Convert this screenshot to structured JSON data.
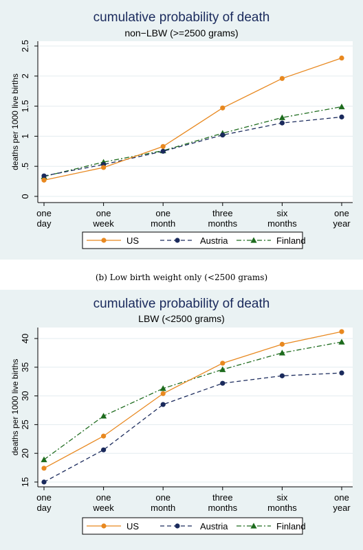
{
  "caption": "(b) Low birth weight only (<2500 grams)",
  "chart_data": [
    {
      "type": "line",
      "title": "cumulative probability of death",
      "subtitle": "non−LBW (>=2500 grams)",
      "ylabel": "deaths per 1000 live births",
      "ylim": [
        0,
        2.5
      ],
      "yticks": [
        0,
        0.5,
        1,
        1.5,
        2,
        2.5
      ],
      "ytick_labels": [
        "0",
        ".5",
        "1",
        "1.5",
        "2",
        "2.5"
      ],
      "categories": [
        [
          "one",
          "day"
        ],
        [
          "one",
          "week"
        ],
        [
          "one",
          "month"
        ],
        [
          "three",
          "months"
        ],
        [
          "six",
          "months"
        ],
        [
          "one",
          "year"
        ]
      ],
      "grid": true,
      "legend_position": "bottom",
      "series": [
        {
          "name": "US",
          "color": "#e8881f",
          "marker": "circle",
          "dash": "none",
          "values": [
            0.27,
            0.48,
            0.83,
            1.47,
            1.96,
            2.3
          ]
        },
        {
          "name": "Austria",
          "color": "#1a2a5c",
          "marker": "circle",
          "dash": "long",
          "values": [
            0.34,
            0.53,
            0.75,
            1.02,
            1.22,
            1.32
          ]
        },
        {
          "name": "Finland",
          "color": "#1d6b1d",
          "marker": "triangle",
          "dash": "dashdot",
          "values": [
            0.33,
            0.57,
            0.76,
            1.05,
            1.31,
            1.49
          ]
        }
      ]
    },
    {
      "type": "line",
      "title": "cumulative probability of death",
      "subtitle": "LBW (<2500 grams)",
      "ylabel": "deaths per 1000 live births",
      "ylim": [
        15,
        40
      ],
      "yticks": [
        15,
        20,
        25,
        30,
        35,
        40
      ],
      "ytick_labels": [
        "15",
        "20",
        "25",
        "30",
        "35",
        "40"
      ],
      "categories": [
        [
          "one",
          "day"
        ],
        [
          "one",
          "week"
        ],
        [
          "one",
          "month"
        ],
        [
          "three",
          "months"
        ],
        [
          "six",
          "months"
        ],
        [
          "one",
          "year"
        ]
      ],
      "grid": true,
      "legend_position": "bottom",
      "series": [
        {
          "name": "US",
          "color": "#e8881f",
          "marker": "circle",
          "dash": "none",
          "values": [
            17.4,
            23.0,
            30.4,
            35.7,
            39.0,
            41.2
          ]
        },
        {
          "name": "Austria",
          "color": "#1a2a5c",
          "marker": "circle",
          "dash": "long",
          "values": [
            15.0,
            20.6,
            28.5,
            32.2,
            33.5,
            34.0
          ]
        },
        {
          "name": "Finland",
          "color": "#1d6b1d",
          "marker": "triangle",
          "dash": "dashdot",
          "values": [
            18.9,
            26.5,
            31.3,
            34.6,
            37.5,
            39.4
          ]
        }
      ]
    }
  ]
}
